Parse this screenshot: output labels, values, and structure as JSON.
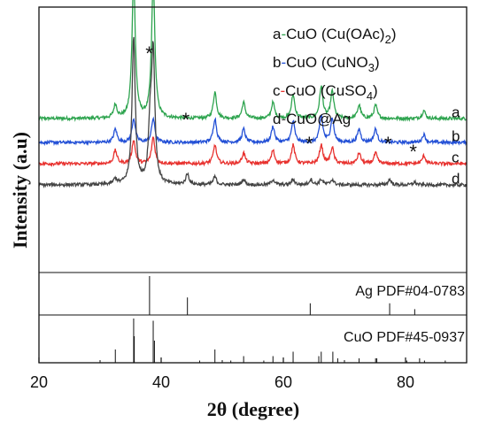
{
  "chart_data": {
    "type": "line",
    "xlabel": "2θ (degree)",
    "ylabel": "Intensity (a.u)",
    "xlim": [
      20,
      90
    ],
    "xticks": [
      20,
      40,
      60,
      80
    ],
    "xtick_labels": [
      "20",
      "40",
      "60",
      "80"
    ],
    "grid": false,
    "legend_position": "top-right",
    "legend": [
      {
        "prefix": "a",
        "label": "CuO (Cu(OAc)",
        "sub": "2",
        "suffix": ")",
        "color": "#2ea44f"
      },
      {
        "prefix": "b",
        "label": "CuO (CuNO",
        "sub": "3",
        "suffix": ")",
        "color": "#2350d6"
      },
      {
        "prefix": "c",
        "label": "CuO (CuSO",
        "sub": "4",
        "suffix": ")",
        "color": "#e8322f"
      },
      {
        "prefix": "d",
        "label": "CuO@Ag",
        "sub": "",
        "suffix": "",
        "color": "#444444"
      }
    ],
    "series": [
      {
        "name": "a",
        "color": "#2ea44f",
        "baseline": 0.58,
        "peaks": [
          [
            32.5,
            0.05
          ],
          [
            35.5,
            0.53
          ],
          [
            38.7,
            0.52
          ],
          [
            48.8,
            0.1
          ],
          [
            53.5,
            0.06
          ],
          [
            58.3,
            0.06
          ],
          [
            61.6,
            0.09
          ],
          [
            66.2,
            0.12
          ],
          [
            68.0,
            0.1
          ],
          [
            72.4,
            0.05
          ],
          [
            75.1,
            0.05
          ],
          [
            83.0,
            0.03
          ]
        ]
      },
      {
        "name": "b",
        "color": "#2350d6",
        "baseline": 0.49,
        "peaks": [
          [
            32.5,
            0.05
          ],
          [
            35.5,
            0.09
          ],
          [
            38.7,
            0.09
          ],
          [
            48.8,
            0.09
          ],
          [
            53.5,
            0.05
          ],
          [
            58.3,
            0.06
          ],
          [
            61.6,
            0.08
          ],
          [
            66.2,
            0.1
          ],
          [
            68.0,
            0.09
          ],
          [
            72.4,
            0.05
          ],
          [
            75.1,
            0.05
          ],
          [
            83.0,
            0.03
          ]
        ]
      },
      {
        "name": "c",
        "color": "#e8322f",
        "baseline": 0.41,
        "peaks": [
          [
            32.5,
            0.05
          ],
          [
            35.5,
            0.09
          ],
          [
            38.7,
            0.1
          ],
          [
            48.8,
            0.07
          ],
          [
            53.5,
            0.04
          ],
          [
            58.3,
            0.05
          ],
          [
            61.6,
            0.07
          ],
          [
            66.2,
            0.07
          ],
          [
            68.0,
            0.06
          ],
          [
            72.4,
            0.04
          ],
          [
            75.1,
            0.04
          ],
          [
            83.0,
            0.03
          ]
        ]
      },
      {
        "name": "d",
        "color": "#444444",
        "baseline": 0.33,
        "peaks": [
          [
            32.5,
            0.02
          ],
          [
            35.5,
            0.55
          ],
          [
            38.2,
            0.2
          ],
          [
            38.7,
            0.48
          ],
          [
            44.3,
            0.04
          ],
          [
            48.8,
            0.03
          ],
          [
            53.5,
            0.02
          ],
          [
            58.3,
            0.02
          ],
          [
            61.6,
            0.02
          ],
          [
            64.5,
            0.02
          ],
          [
            66.2,
            0.02
          ],
          [
            68.0,
            0.02
          ],
          [
            77.4,
            0.02
          ],
          [
            81.5,
            0.01
          ]
        ]
      }
    ],
    "series_labels": [
      "a",
      "b",
      "c",
      "d"
    ],
    "asterisk": "*",
    "asterisk_positions": [
      [
        38.3,
        0.84
      ],
      [
        44.3,
        0.59
      ],
      [
        64.5,
        0.5
      ],
      [
        77.4,
        0.5
      ],
      [
        81.5,
        0.47
      ]
    ],
    "references": [
      {
        "label": "Ag PDF#04-0783",
        "lines": [
          [
            38.1,
            1.0
          ],
          [
            44.3,
            0.45
          ],
          [
            64.4,
            0.3
          ],
          [
            77.4,
            0.3
          ],
          [
            81.5,
            0.15
          ]
        ]
      },
      {
        "label": "CuO PDF#45-0937",
        "lines": [
          [
            32.5,
            0.3
          ],
          [
            35.5,
            1.0
          ],
          [
            35.6,
            0.6
          ],
          [
            38.7,
            0.95
          ],
          [
            38.9,
            0.5
          ],
          [
            46.3,
            0.05
          ],
          [
            48.8,
            0.3
          ],
          [
            51.4,
            0.05
          ],
          [
            53.5,
            0.15
          ],
          [
            56.8,
            0.05
          ],
          [
            58.3,
            0.15
          ],
          [
            61.6,
            0.25
          ],
          [
            65.8,
            0.15
          ],
          [
            66.2,
            0.25
          ],
          [
            68.1,
            0.25
          ],
          [
            68.9,
            0.1
          ],
          [
            72.4,
            0.1
          ],
          [
            75.1,
            0.1
          ],
          [
            75.3,
            0.1
          ],
          [
            80.2,
            0.05
          ],
          [
            82.3,
            0.1
          ],
          [
            83.1,
            0.05
          ],
          [
            86.5,
            0.05
          ]
        ]
      }
    ]
  }
}
